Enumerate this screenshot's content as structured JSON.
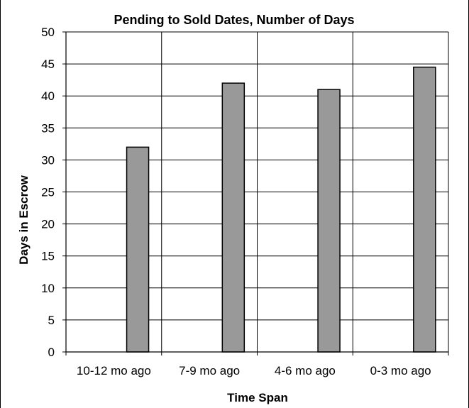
{
  "chart_data": {
    "type": "bar",
    "title": "Pending to Sold Dates, Number of Days",
    "xlabel": "Time Span",
    "ylabel": "Days in Escrow",
    "categories": [
      "10-12 mo ago",
      "7-9 mo ago",
      "4-6 mo ago",
      "0-3 mo ago"
    ],
    "values": [
      32,
      42,
      41,
      44.5
    ],
    "ylim": [
      0,
      50
    ],
    "yticks": [
      "0",
      "5",
      "10",
      "15",
      "20",
      "25",
      "30",
      "35",
      "40",
      "45",
      "50"
    ],
    "grid": true,
    "legend": "none",
    "bar_color": "#999999",
    "bar_edge_color": "#000000"
  }
}
